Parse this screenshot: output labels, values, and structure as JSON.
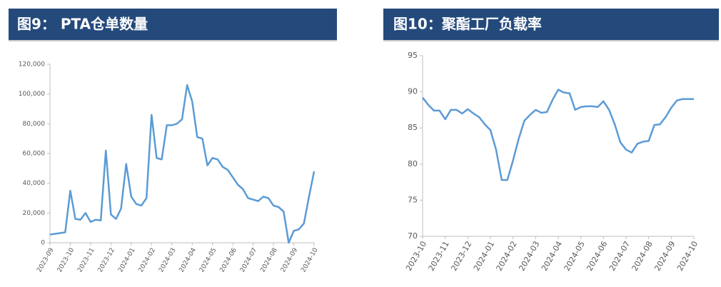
{
  "chart_data": [
    {
      "type": "line",
      "title": "图9： PTA仓单数量",
      "categories": [
        "2023-09",
        null,
        null,
        null,
        "2023-10",
        null,
        null,
        null,
        "2023-11",
        null,
        null,
        null,
        "2023-12",
        null,
        null,
        null,
        "2024-01",
        null,
        null,
        null,
        "2024-02",
        null,
        null,
        null,
        "2024-03",
        null,
        null,
        null,
        "2024-04",
        null,
        null,
        null,
        "2024-05",
        null,
        null,
        null,
        "2024-06",
        null,
        null,
        null,
        "2024-07",
        null,
        null,
        null,
        "2024-08",
        null,
        null,
        null,
        "2024-09",
        null,
        null,
        null,
        "2024-10"
      ],
      "series": [
        {
          "color": "#5b9bd5",
          "values": [
            5500,
            6000,
            6500,
            7000,
            35000,
            16000,
            15500,
            20000,
            14000,
            15500,
            15000,
            62000,
            19000,
            16000,
            23000,
            53000,
            31000,
            26000,
            25000,
            30000,
            86000,
            57000,
            56000,
            79000,
            79000,
            80000,
            83000,
            106000,
            95000,
            71000,
            70000,
            52000,
            57000,
            56000,
            51000,
            49000,
            44000,
            39000,
            36000,
            30000,
            29000,
            28000,
            31000,
            30000,
            25000,
            24000,
            21000,
            0,
            8000,
            9000,
            13000,
            31000,
            48000
          ]
        }
      ],
      "ylim": [
        0,
        120000
      ],
      "yticks": [
        0,
        {
          "value": 20000,
          "label": "20,000"
        },
        {
          "value": 40000,
          "label": "40,000"
        },
        {
          "value": 60000,
          "label": "60,000"
        },
        {
          "value": 80000,
          "label": "80,000"
        },
        {
          "value": 100000,
          "label": "100,000"
        },
        {
          "value": 120000,
          "label": "120,000"
        }
      ],
      "grid": false
    },
    {
      "type": "line",
      "title": "图10：聚酯工厂负载率",
      "categories": [
        "2023-10",
        null,
        null,
        null,
        "2023-11",
        null,
        null,
        null,
        "2023-12",
        null,
        null,
        null,
        "2024-01",
        null,
        null,
        null,
        "2024-02",
        null,
        null,
        null,
        "2024-03",
        null,
        null,
        null,
        "2024-04",
        null,
        null,
        null,
        "2024-05",
        null,
        null,
        null,
        "2024-06",
        null,
        null,
        null,
        "2024-07",
        null,
        null,
        null,
        "2024-08",
        null,
        null,
        null,
        "2024-09",
        null,
        null,
        null,
        "2024-10"
      ],
      "series": [
        {
          "color": "#5b9bd5",
          "values": [
            89.2,
            88.2,
            87.4,
            87.4,
            86.2,
            87.5,
            87.5,
            87.0,
            87.6,
            87.0,
            86.5,
            85.5,
            84.7,
            82,
            77.8,
            77.8,
            80.5,
            83.5,
            86,
            86.8,
            87.5,
            87.1,
            87.2,
            88.9,
            90.3,
            89.9,
            89.8,
            87.5,
            87.9,
            88.0,
            88.0,
            87.9,
            88.7,
            87.5,
            85.5,
            83,
            82,
            81.6,
            82.8,
            83.1,
            83.2,
            85.4,
            85.5,
            86.5,
            87.8,
            88.8,
            89.0,
            89.0,
            89.0
          ]
        }
      ],
      "ylim": [
        70,
        95
      ],
      "yticks": [
        70,
        75,
        80,
        85,
        90,
        95
      ],
      "grid": false
    }
  ]
}
